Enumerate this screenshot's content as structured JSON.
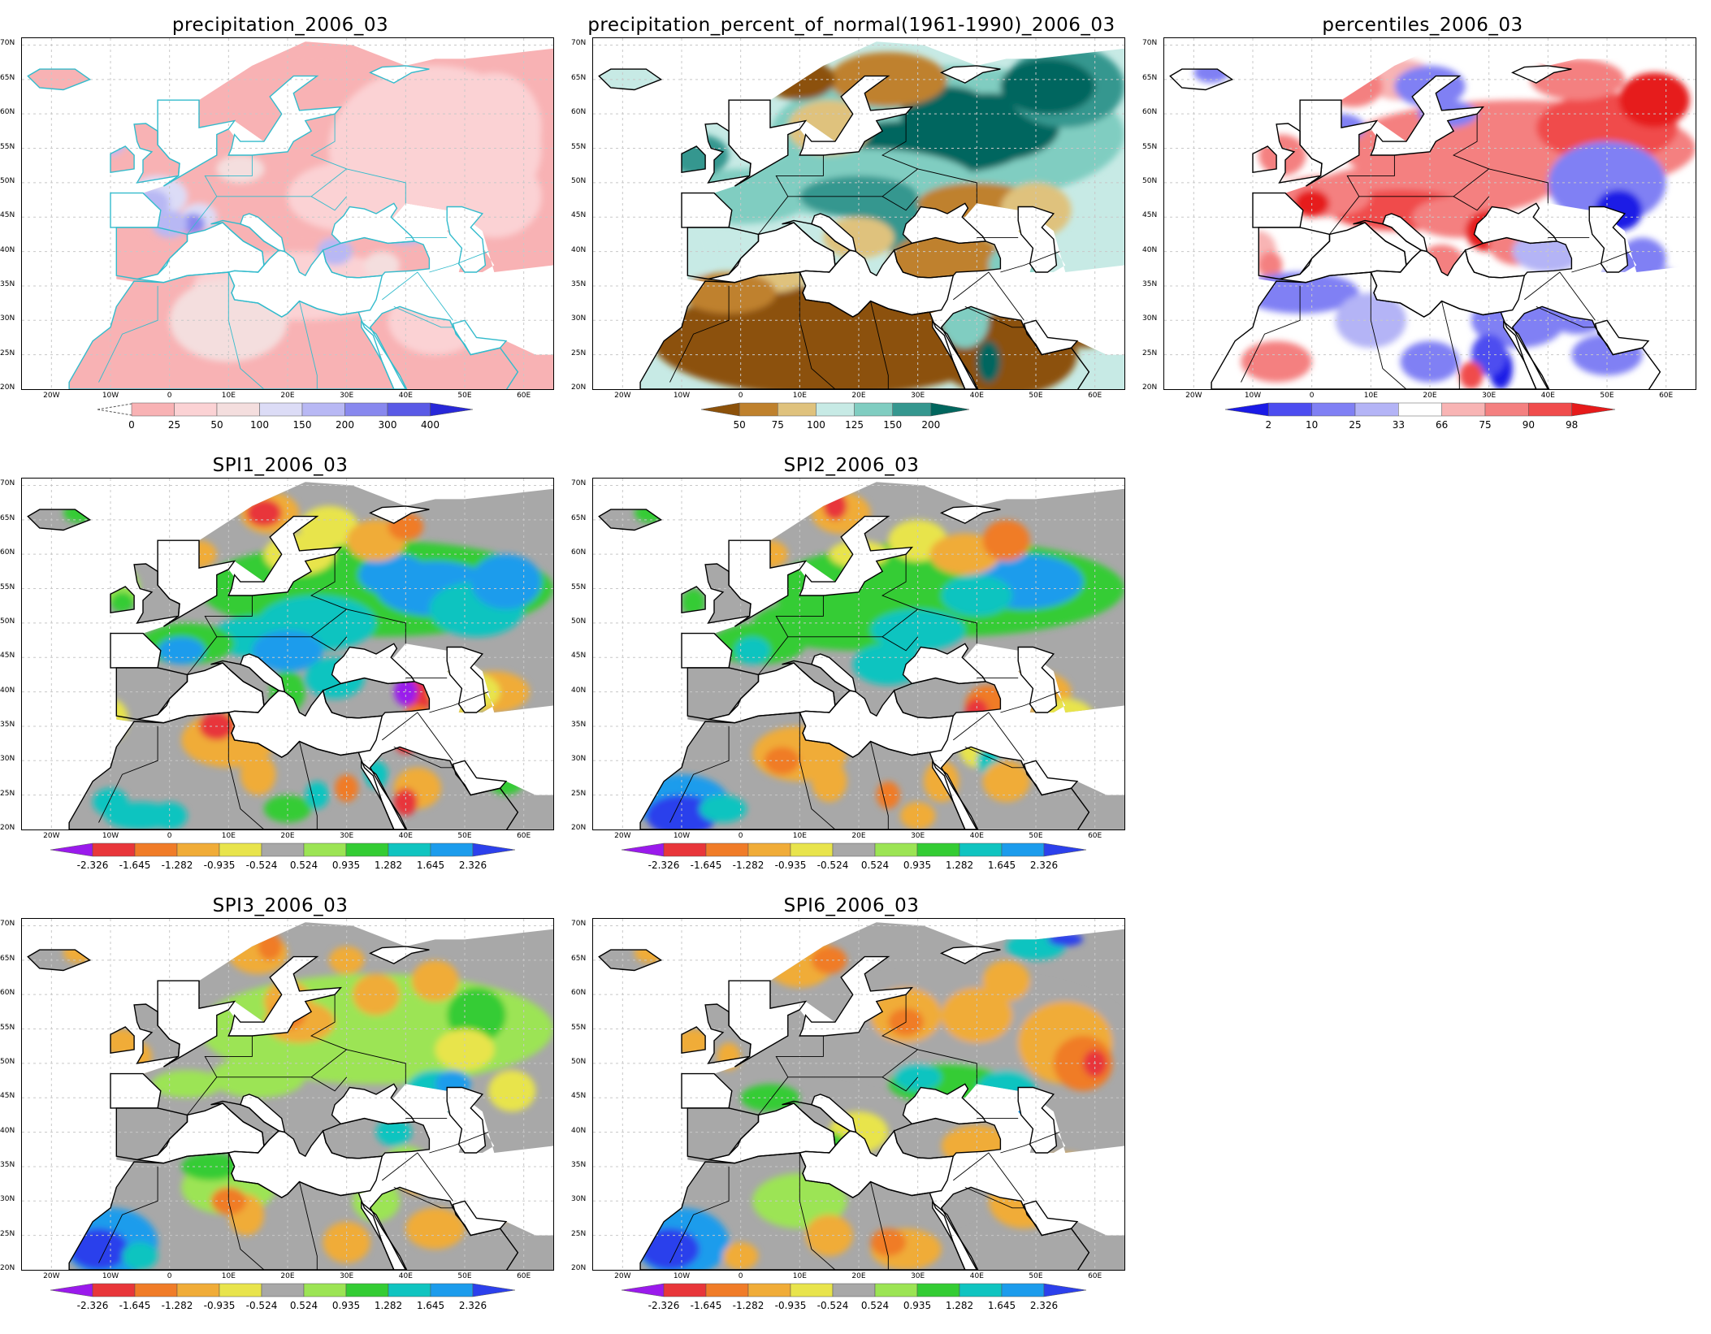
{
  "lat_labels": [
    "70N",
    "65N",
    "60N",
    "55N",
    "50N",
    "45N",
    "40N",
    "35N",
    "30N",
    "25N",
    "20N"
  ],
  "lon_labels": [
    "20W",
    "10W",
    "0",
    "10E",
    "20E",
    "30E",
    "40E",
    "50E",
    "60E"
  ],
  "palettes": {
    "precip": [
      "#f8b2b4",
      "#fbd2d4",
      "#f4dede",
      "#dcdcf6",
      "#b8b8f4",
      "#8888ee",
      "#5a5ae6",
      "#2828d8"
    ],
    "ratio": [
      "#8c510a",
      "#bf812d",
      "#dfc27d",
      "#e8e4c8",
      "#c7eae5",
      "#80cdc1",
      "#35978f",
      "#01665e"
    ],
    "pct": [
      "#1a1ae6",
      "#4d4df0",
      "#8080f4",
      "#b4b4f6",
      "#ffffff",
      "#f8b4b4",
      "#f48080",
      "#f04c4c",
      "#e61a1a"
    ],
    "spi": [
      "#9a1aec",
      "#e8363a",
      "#f07c28",
      "#f0ac38",
      "#e8e44c",
      "#a8a8a8",
      "#9ce454",
      "#34cc34",
      "#10c4c0",
      "#1c9cec",
      "#2c40ec"
    ],
    "land_default": "#a8a8a8",
    "coast": "#000000",
    "coast_precip": "#33bbcc"
  },
  "panels": [
    {
      "id": "precipitation",
      "title": "precipitation_2006_03",
      "palette": "precip",
      "colorbar_labels": [
        "0",
        "25",
        "50",
        "100",
        "150",
        "200",
        "300",
        "400"
      ]
    },
    {
      "id": "percent_of_normal",
      "title": "precipitation_percent_of_normal(1961-1990)_2006_03",
      "palette": "ratio",
      "colorbar_labels": [
        "50",
        "75",
        "100",
        "125",
        "150",
        "200"
      ]
    },
    {
      "id": "percentiles",
      "title": "percentiles_2006_03",
      "palette": "pct",
      "colorbar_labels": [
        "2",
        "10",
        "25",
        "33",
        "66",
        "75",
        "90",
        "98"
      ]
    },
    {
      "id": "spi1",
      "title": "SPI1_2006_03",
      "palette": "spi",
      "colorbar_labels": [
        "-2.326",
        "-1.645",
        "-1.282",
        "-0.935",
        "-0.524",
        "0.524",
        "0.935",
        "1.282",
        "1.645",
        "2.326"
      ]
    },
    {
      "id": "spi2",
      "title": "SPI2_2006_03",
      "palette": "spi",
      "colorbar_labels": [
        "-2.326",
        "-1.645",
        "-1.282",
        "-0.935",
        "-0.524",
        "0.524",
        "0.935",
        "1.282",
        "1.645",
        "2.326"
      ]
    },
    {
      "id": "spi3",
      "title": "SPI3_2006_03",
      "palette": "spi",
      "colorbar_labels": [
        "-2.326",
        "-1.645",
        "-1.282",
        "-0.935",
        "-0.524",
        "0.524",
        "0.935",
        "1.282",
        "1.645",
        "2.326"
      ]
    },
    {
      "id": "spi6",
      "title": "SPI6_2006_03",
      "palette": "spi",
      "colorbar_labels": [
        "-2.326",
        "-1.645",
        "-1.282",
        "-0.935",
        "-0.524",
        "0.524",
        "0.935",
        "1.282",
        "1.645",
        "2.326"
      ]
    }
  ]
}
